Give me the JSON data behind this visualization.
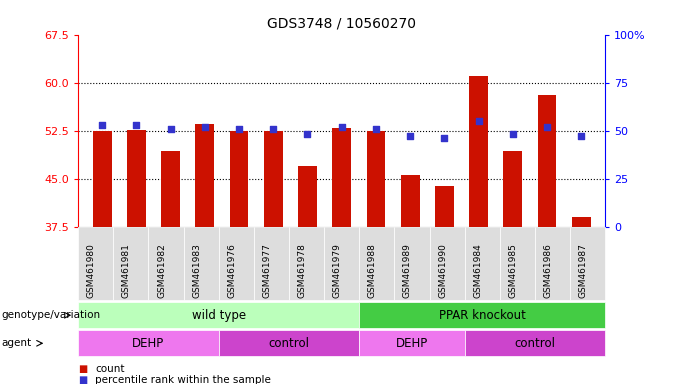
{
  "title": "GDS3748 / 10560270",
  "samples": [
    "GSM461980",
    "GSM461981",
    "GSM461982",
    "GSM461983",
    "GSM461976",
    "GSM461977",
    "GSM461978",
    "GSM461979",
    "GSM461988",
    "GSM461989",
    "GSM461990",
    "GSM461984",
    "GSM461985",
    "GSM461986",
    "GSM461987"
  ],
  "bar_values": [
    52.5,
    52.6,
    49.3,
    53.5,
    52.4,
    52.4,
    47.0,
    52.9,
    52.4,
    45.5,
    43.8,
    61.0,
    49.3,
    58.0,
    39.0
  ],
  "dot_percentiles": [
    53,
    53,
    51,
    52,
    51,
    51,
    48,
    52,
    51,
    47,
    46,
    55,
    48,
    52,
    47
  ],
  "ylim_left": [
    37.5,
    67.5
  ],
  "yticks_left": [
    37.5,
    45.0,
    52.5,
    60.0,
    67.5
  ],
  "yticks_right": [
    0,
    25,
    50,
    75,
    100
  ],
  "yticks_right_labels": [
    "0",
    "25",
    "50",
    "75",
    "100%"
  ],
  "grid_lines": [
    45.0,
    52.5,
    60.0
  ],
  "bar_color": "#cc1100",
  "dot_color": "#3333cc",
  "genotype_groups": [
    {
      "label": "wild type",
      "start": 0,
      "end": 8,
      "color": "#bbffbb"
    },
    {
      "label": "PPAR knockout",
      "start": 8,
      "end": 15,
      "color": "#44cc44"
    }
  ],
  "agent_groups": [
    {
      "label": "DEHP",
      "start": 0,
      "end": 4,
      "color": "#ee77ee"
    },
    {
      "label": "control",
      "start": 4,
      "end": 8,
      "color": "#cc44cc"
    },
    {
      "label": "DEHP",
      "start": 8,
      "end": 11,
      "color": "#ee77ee"
    },
    {
      "label": "control",
      "start": 11,
      "end": 15,
      "color": "#cc44cc"
    }
  ],
  "legend_items": [
    {
      "label": "count",
      "color": "#cc1100"
    },
    {
      "label": "percentile rank within the sample",
      "color": "#3333cc"
    }
  ]
}
